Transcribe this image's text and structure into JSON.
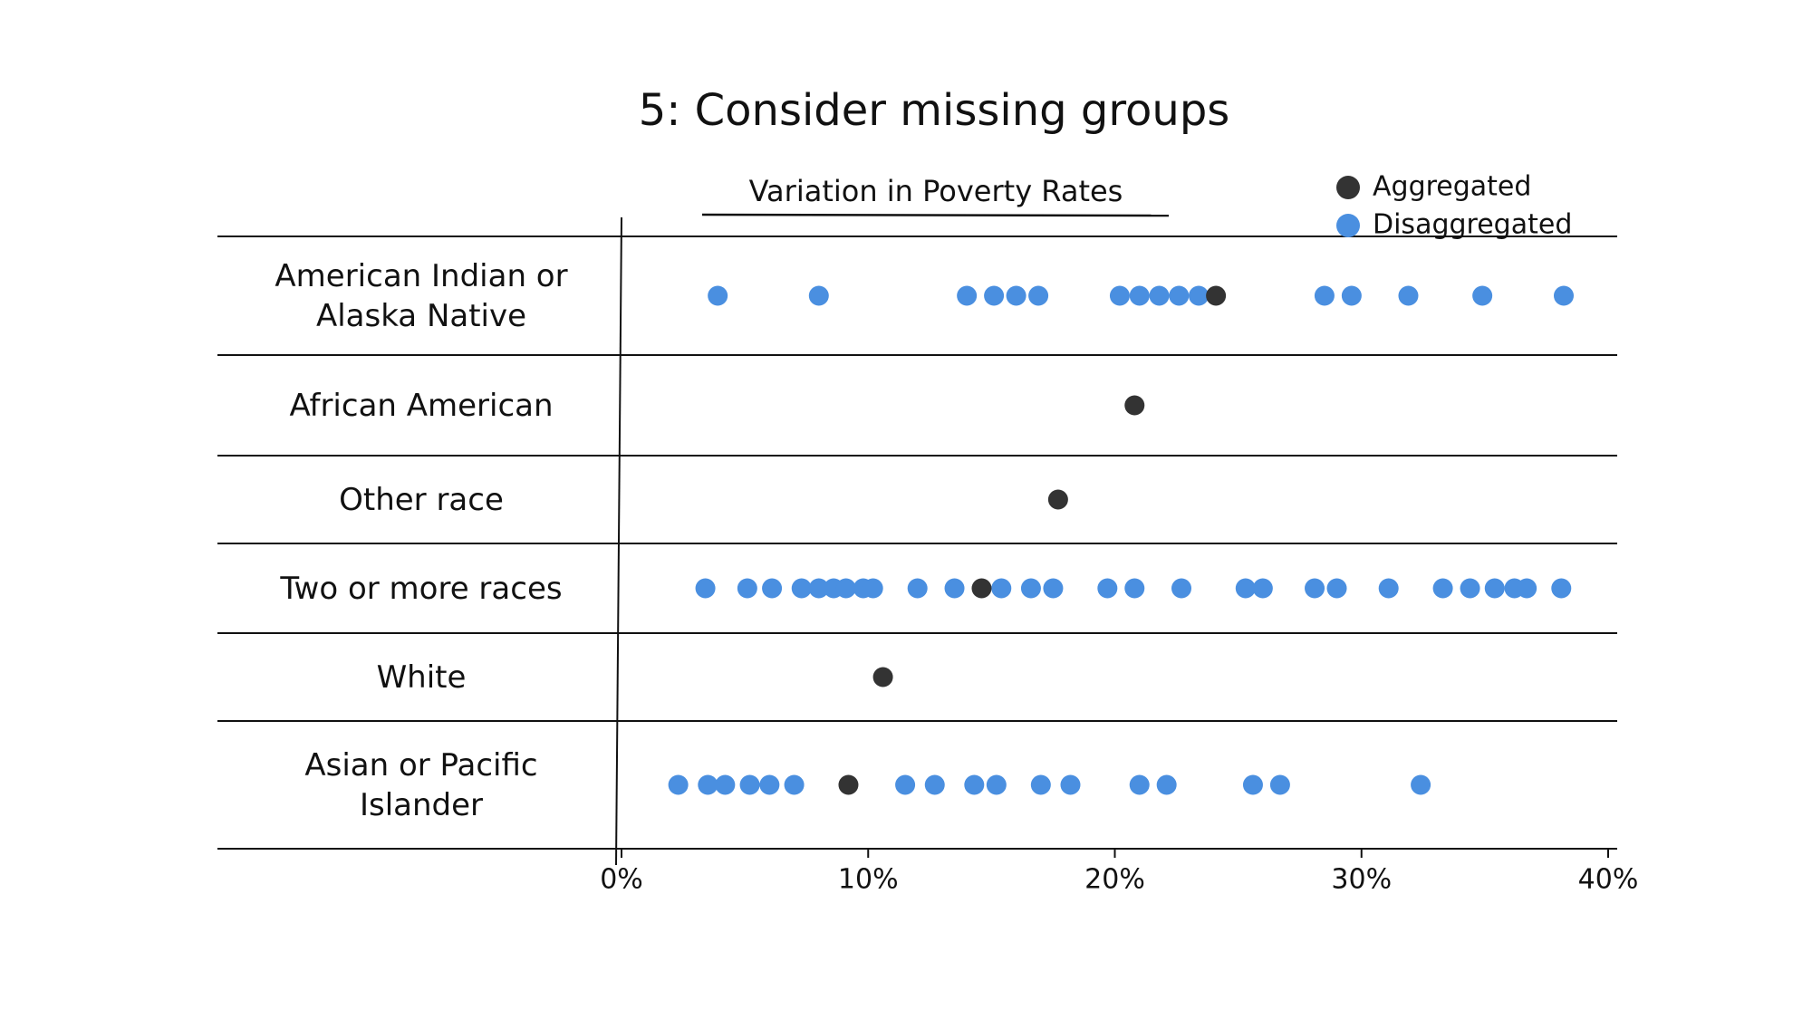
{
  "chart_data": {
    "type": "strip",
    "title": "5: Consider missing groups",
    "subtitle": "Variation in Poverty Rates",
    "categories": [
      "American Indian or Alaska Native",
      "African American",
      "Other race",
      "Two or more races",
      "White",
      "Asian or Pacific Islander"
    ],
    "series": [
      {
        "name": "Aggregated",
        "color": "#333333",
        "values": [
          24.1,
          20.8,
          17.7,
          14.6,
          10.6,
          9.2
        ]
      },
      {
        "name": "Disaggregated",
        "color": "#4a8fe0",
        "values": [
          [
            3.9,
            8.0,
            14.0,
            15.1,
            16.0,
            16.9,
            20.2,
            21.0,
            21.8,
            22.6,
            23.4,
            28.5,
            29.6,
            31.9,
            34.9,
            38.2
          ],
          [],
          [],
          [
            3.4,
            5.1,
            6.1,
            7.3,
            8.0,
            8.6,
            9.1,
            9.8,
            10.2,
            12.0,
            13.5,
            15.4,
            16.6,
            17.5,
            19.7,
            20.8,
            22.7,
            25.3,
            26.0,
            28.1,
            29.0,
            31.1,
            33.3,
            34.4,
            35.4,
            36.2,
            36.7,
            38.1
          ],
          [],
          [
            2.3,
            3.5,
            4.2,
            5.2,
            6.0,
            7.0,
            11.5,
            12.7,
            14.3,
            15.2,
            17.0,
            18.2,
            21.0,
            22.1,
            25.6,
            26.7,
            32.4
          ]
        ]
      }
    ],
    "xlim": [
      0,
      40
    ],
    "xticks": [
      {
        "value": 0,
        "label": "0%"
      },
      {
        "value": 10,
        "label": "10%"
      },
      {
        "value": 20,
        "label": "20%"
      },
      {
        "value": 30,
        "label": "30%"
      },
      {
        "value": 40,
        "label": "40%"
      }
    ],
    "legend": "top-right"
  }
}
